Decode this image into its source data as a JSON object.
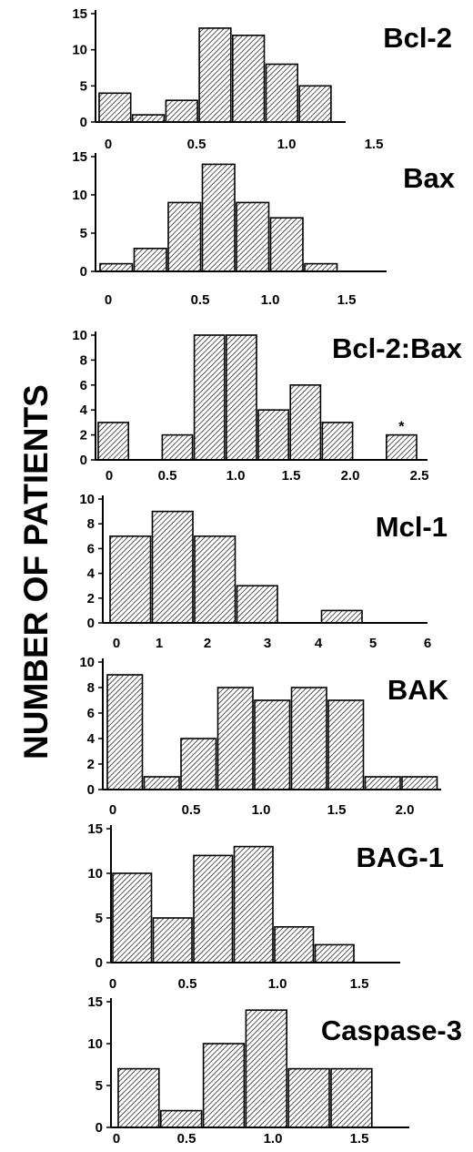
{
  "figure": {
    "ylabel": "NUMBER OF PATIENTS"
  },
  "chart_data": [
    {
      "type": "bar",
      "title": "Bcl-2",
      "categories": [
        "0-0.25",
        "0.25-0.5",
        "0.5-0.75",
        "0.75-1.0",
        "1.0-1.25",
        "1.25-1.5",
        "1.5-1.75"
      ],
      "values": [
        4,
        1,
        3,
        13,
        12,
        8,
        5
      ],
      "ylim": [
        0,
        15
      ],
      "yticks": [
        0,
        5,
        10,
        15
      ],
      "xticks": [
        {
          "label": "0",
          "value": 0
        },
        {
          "label": "0.5",
          "value": 0.5
        },
        {
          "label": "1.0",
          "value": 1.0
        },
        {
          "label": "1.5",
          "value": 1.5
        }
      ]
    },
    {
      "type": "bar",
      "title": "Bax",
      "categories": [
        "0-0.25",
        "0.25-0.5",
        "0.5-0.75",
        "0.75-1.0",
        "1.0-1.25",
        "1.25-1.5",
        "1.5-1.75"
      ],
      "values": [
        1,
        3,
        9,
        14,
        9,
        7,
        1
      ],
      "ylim": [
        0,
        15
      ],
      "yticks": [
        0,
        5,
        10,
        15
      ],
      "xticks": [
        {
          "label": "0",
          "value": 0
        },
        {
          "label": "0.5",
          "value": 0.5
        },
        {
          "label": "1.0",
          "value": 1.0
        },
        {
          "label": "1.5",
          "value": 1.5
        }
      ]
    },
    {
      "type": "bar",
      "title": "Bcl-2:Bax",
      "categories": [
        "0-0.25",
        "0.25-0.5",
        "0.5-0.75",
        "0.75-1.0",
        "1.0-1.25",
        "1.25-1.5",
        "1.5-1.75",
        "1.75-2.0",
        "2.0-2.25",
        ">2.25"
      ],
      "values": [
        3,
        0,
        2,
        10,
        10,
        4,
        6,
        3,
        0,
        2
      ],
      "ylim": [
        0,
        10
      ],
      "yticks": [
        0,
        2,
        4,
        6,
        8,
        10
      ],
      "xticks": [
        {
          "label": "0",
          "value": 0
        },
        {
          "label": "0.5",
          "value": 0.5
        },
        {
          "label": "1.0",
          "value": 1.0
        },
        {
          "label": "1.5",
          "value": 1.5
        },
        {
          "label": "2.0",
          "value": 2.0
        },
        {
          "label": "2.5",
          "value": 2.5
        }
      ],
      "annotation": "*"
    },
    {
      "type": "bar",
      "title": "Mcl-1",
      "categories": [
        "0-1",
        "1-2",
        "2-3",
        "3-4",
        "4-5",
        "5-6"
      ],
      "values": [
        7,
        9,
        7,
        3,
        0,
        1
      ],
      "ylim": [
        0,
        10
      ],
      "yticks": [
        0,
        2,
        4,
        6,
        8,
        10
      ],
      "xticks": [
        {
          "label": "0",
          "value": 0
        },
        {
          "label": "1",
          "value": 1
        },
        {
          "label": "2",
          "value": 2
        },
        {
          "label": "3",
          "value": 3
        },
        {
          "label": "4",
          "value": 4
        },
        {
          "label": "5",
          "value": 5
        },
        {
          "label": "6",
          "value": 6
        }
      ]
    },
    {
      "type": "bar",
      "title": "BAK",
      "categories": [
        "0-0.25",
        "0.25-0.5",
        "0.5-0.75",
        "0.75-1.0",
        "1.0-1.25",
        "1.25-1.5",
        "1.5-1.75",
        "1.75-2.0",
        "2.0-2.25"
      ],
      "values": [
        9,
        1,
        4,
        8,
        7,
        8,
        7,
        1,
        1
      ],
      "ylim": [
        0,
        10
      ],
      "yticks": [
        0,
        2,
        4,
        6,
        8,
        10
      ],
      "xticks": [
        {
          "label": "0",
          "value": 0
        },
        {
          "label": "0.5",
          "value": 0.5
        },
        {
          "label": "1.0",
          "value": 1.0
        },
        {
          "label": "1.5",
          "value": 1.5
        },
        {
          "label": "2.0",
          "value": 2.0
        }
      ]
    },
    {
      "type": "bar",
      "title": "BAG-1",
      "categories": [
        "0-0.25",
        "0.25-0.5",
        "0.5-0.75",
        "0.75-1.0",
        "1.0-1.25",
        "1.25-1.5"
      ],
      "values": [
        10,
        5,
        12,
        13,
        4,
        2
      ],
      "ylim": [
        0,
        15
      ],
      "yticks": [
        0,
        5,
        10,
        15
      ],
      "xticks": [
        {
          "label": "0",
          "value": 0
        },
        {
          "label": "0.5",
          "value": 0.5
        },
        {
          "label": "1.0",
          "value": 1.0
        },
        {
          "label": "1.5",
          "value": 1.5
        }
      ]
    },
    {
      "type": "bar",
      "title": "Caspase-3",
      "categories": [
        "0-0.25",
        "0.25-0.5",
        "0.5-0.75",
        "0.75-1.0",
        "1.0-1.25",
        "1.25-1.5"
      ],
      "values": [
        7,
        2,
        10,
        14,
        7,
        7
      ],
      "ylim": [
        0,
        15
      ],
      "yticks": [
        0,
        5,
        10,
        15
      ],
      "xticks": [
        {
          "label": "0",
          "value": 0
        },
        {
          "label": "0.5",
          "value": 0.5
        },
        {
          "label": "1.0",
          "value": 1.0
        },
        {
          "label": "1.5",
          "value": 1.5
        }
      ]
    }
  ]
}
